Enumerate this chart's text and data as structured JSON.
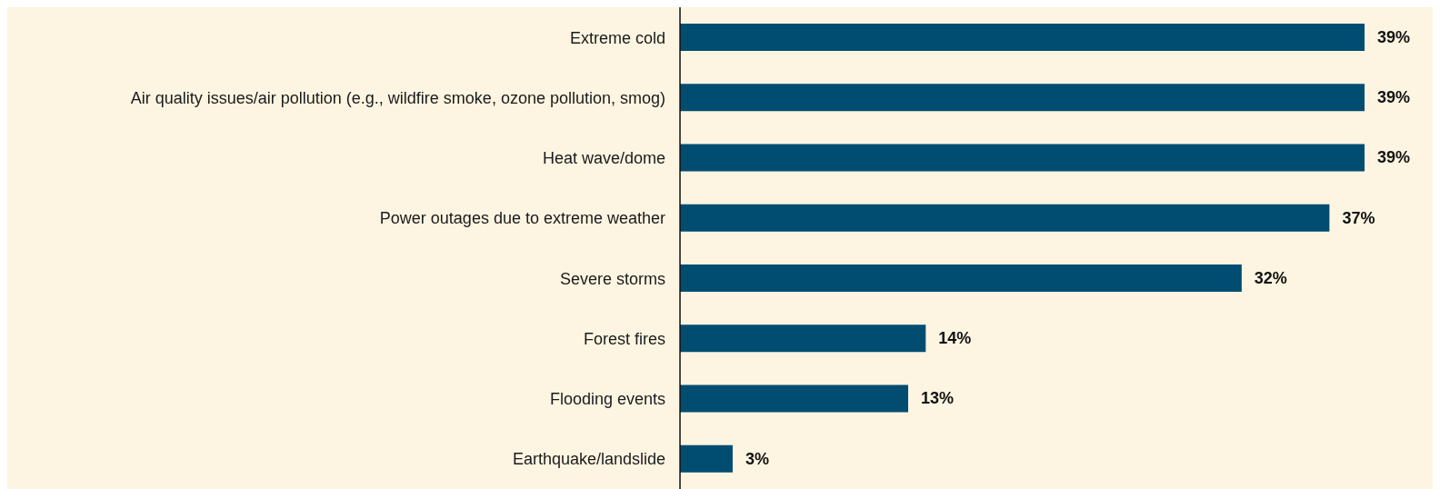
{
  "chart_data": {
    "type": "bar",
    "orientation": "horizontal",
    "categories": [
      "Extreme cold",
      "Air quality issues/air pollution (e.g., wildfire smoke, ozone pollution, smog)",
      "Heat wave/dome",
      "Power outages due to extreme weather",
      "Severe storms",
      "Forest fires",
      "Flooding events",
      "Earthquake/landslide"
    ],
    "values": [
      39,
      39,
      39,
      37,
      32,
      14,
      13,
      3
    ],
    "value_labels": [
      "39%",
      "39%",
      "39%",
      "37%",
      "32%",
      "14%",
      "13%",
      "3%"
    ],
    "color": "#004d71",
    "grid": false,
    "legend": false
  }
}
